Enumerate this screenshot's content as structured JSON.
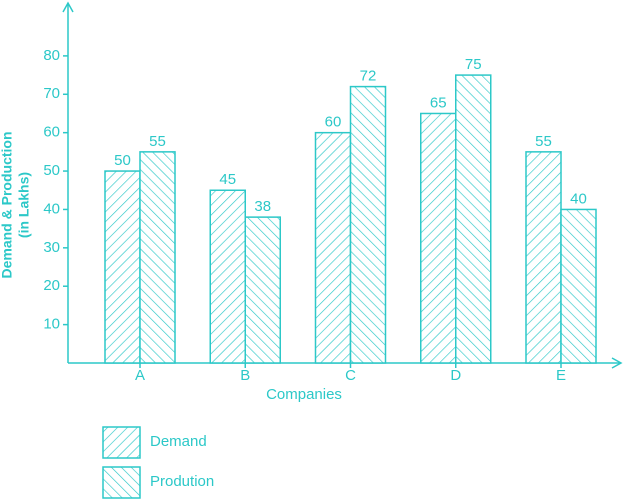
{
  "chart_data": {
    "type": "bar",
    "x_label": "Companies",
    "y_label": [
      "Demand & Production",
      "(in Lakhs)"
    ],
    "categories": [
      "A",
      "B",
      "C",
      "D",
      "E"
    ],
    "series": [
      {
        "name": "Demand",
        "color": "#2cc8c8",
        "values": [
          50,
          45,
          60,
          65,
          55
        ]
      },
      {
        "name": "Prodution",
        "color": "#2cc8c8",
        "values": [
          55,
          38,
          72,
          75,
          40
        ]
      }
    ],
    "ylim": [
      0,
      90
    ],
    "yticks": [
      10,
      20,
      30,
      40,
      50,
      60,
      70,
      80
    ],
    "legend": "bottom-left"
  }
}
